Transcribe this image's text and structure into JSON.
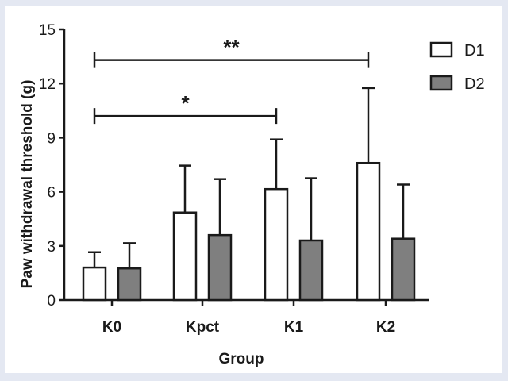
{
  "chart_data": {
    "type": "bar",
    "title": "",
    "xlabel": "Group",
    "ylabel": "Paw withdrawal threshold  (g)",
    "ylim": [
      0,
      15
    ],
    "yticks": [
      "0",
      "3",
      "6",
      "9",
      "12",
      "15"
    ],
    "categories": [
      "K0",
      "Kpct",
      "K1",
      "K2"
    ],
    "series": [
      {
        "name": "D1",
        "values": [
          1.8,
          4.85,
          6.15,
          7.6
        ],
        "errors": [
          0.85,
          2.6,
          2.75,
          4.15
        ],
        "color": "#ffffff"
      },
      {
        "name": "D2",
        "values": [
          1.75,
          3.6,
          3.3,
          3.4
        ],
        "errors": [
          1.4,
          3.1,
          3.45,
          3.0
        ],
        "color": "#7f7f7f"
      }
    ],
    "legend_position": "top-right",
    "grid": false,
    "significance": [
      {
        "from": "K0",
        "to": "K1",
        "y": 10.2,
        "label": "*"
      },
      {
        "from": "K0",
        "to": "K2",
        "y": 13.3,
        "label": "**"
      }
    ]
  }
}
